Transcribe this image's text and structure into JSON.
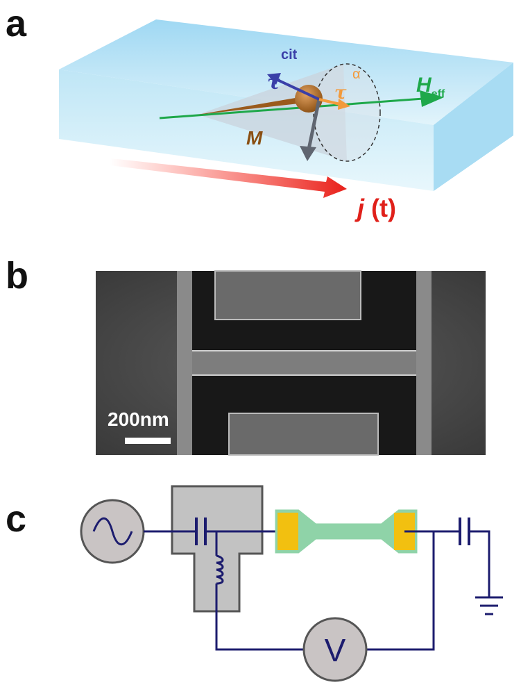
{
  "panels": {
    "a": {
      "label": "a",
      "torque_label": "cit",
      "tau_blue": "τ",
      "tau_orange": "τ",
      "alpha": "α",
      "field": "H",
      "field_subscript": "eff",
      "magnetization": "M",
      "current": "j",
      "current_arg": "(t)"
    },
    "b": {
      "label": "b",
      "scale_bar": "200nm"
    },
    "c": {
      "label": "c",
      "voltmeter": "V"
    }
  }
}
